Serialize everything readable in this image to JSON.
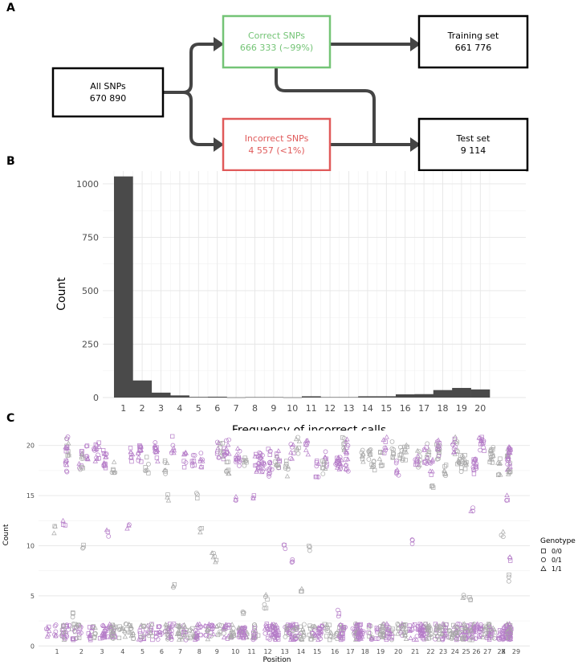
{
  "panels": {
    "a": "A",
    "b": "B",
    "c": "C"
  },
  "colors": {
    "green": "#74c476",
    "red": "#e05a5a",
    "bar": "#4a4a4a",
    "grey_point": "#a8a8a8",
    "purple_point": "#b57cc8",
    "arrow": "#444444"
  },
  "flowchart": {
    "all": {
      "line1": "All SNPs",
      "line2": "670 890"
    },
    "correct": {
      "line1": "Correct SNPs",
      "line2": "666 333 (~99%)"
    },
    "incorrect": {
      "line1": "Incorrect SNPs",
      "line2": "4 557 (<1%)"
    },
    "training": {
      "line1": "Training set",
      "line2": "661 776"
    },
    "test": {
      "line1": "Test set",
      "line2": "9 114"
    }
  },
  "chart_data": [
    {
      "type": "bar",
      "xlabel": "Frequency of incorrect calls",
      "ylabel": "Count",
      "categories": [
        "1",
        "2",
        "3",
        "4",
        "5",
        "6",
        "7",
        "8",
        "9",
        "10",
        "11",
        "12",
        "13",
        "14",
        "15",
        "16",
        "17",
        "18",
        "19",
        "20"
      ],
      "values": [
        1035,
        80,
        23,
        10,
        3,
        4,
        1,
        2,
        2,
        1,
        6,
        2,
        2,
        6,
        6,
        15,
        16,
        35,
        45,
        38
      ],
      "ylim": [
        0,
        1060
      ],
      "yticks": [
        0,
        250,
        500,
        750,
        1000
      ],
      "grid": true
    },
    {
      "type": "scatter",
      "xlabel": "Position",
      "ylabel": "Count",
      "categories": [
        "1",
        "2",
        "3",
        "4",
        "5",
        "6",
        "7",
        "8",
        "9",
        "10",
        "11",
        "12",
        "13",
        "14",
        "15",
        "16",
        "17",
        "18",
        "19",
        "20",
        "21",
        "22",
        "23",
        "24",
        "25",
        "26",
        "27",
        "28",
        "29",
        "X"
      ],
      "yticks": [
        0,
        5,
        10,
        15,
        20
      ],
      "ylim": [
        -0.3,
        21.5
      ],
      "legend": {
        "title": "Genotype",
        "position": "right",
        "entries": [
          {
            "label": "0/0",
            "shape": "square"
          },
          {
            "label": "0/1",
            "shape": "circle"
          },
          {
            "label": "1/1",
            "shape": "triangle"
          }
        ]
      },
      "grid": true
    }
  ]
}
